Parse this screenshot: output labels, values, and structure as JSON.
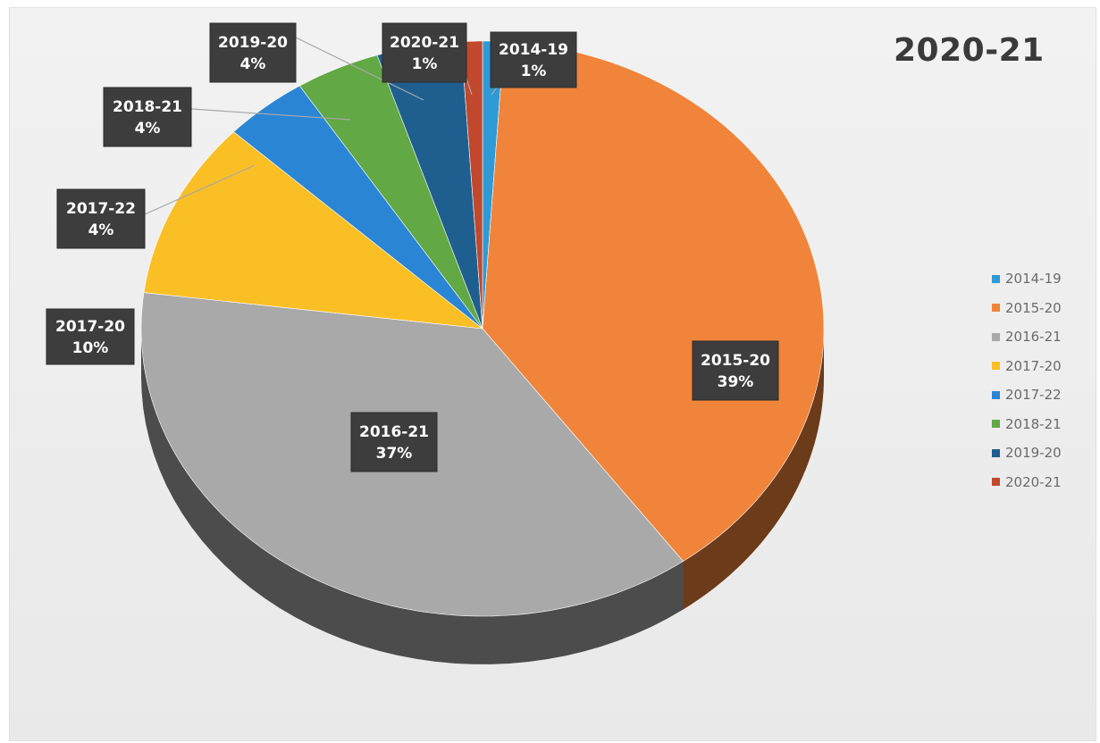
{
  "chart_data": {
    "type": "pie",
    "title": "2020-21",
    "style": "3d",
    "legend_position": "right",
    "slices": [
      {
        "name": "2014-19",
        "label": "2014-19",
        "percent_label": "1%",
        "value": 1,
        "color": "#2e9ad6"
      },
      {
        "name": "2015-20",
        "label": "2015-20",
        "percent_label": "39%",
        "value": 39,
        "color": "#f0843a"
      },
      {
        "name": "2016-21",
        "label": "2016-21",
        "percent_label": "37%",
        "value": 37,
        "color": "#a9a9a9"
      },
      {
        "name": "2017-20",
        "label": "2017-20",
        "percent_label": "10%",
        "value": 10,
        "color": "#fbbf26"
      },
      {
        "name": "2017-22",
        "label": "2017-22",
        "percent_label": "4%",
        "value": 4,
        "color": "#2a86d4"
      },
      {
        "name": "2018-21",
        "label": "2018-21",
        "percent_label": "4%",
        "value": 4,
        "color": "#62a845"
      },
      {
        "name": "2019-20",
        "label": "2019-20",
        "percent_label": "4%",
        "value": 4,
        "color": "#1f5f8f"
      },
      {
        "name": "2020-21",
        "label": "2020-21",
        "percent_label": "1%",
        "value": 1,
        "color": "#c1472d"
      }
    ]
  }
}
